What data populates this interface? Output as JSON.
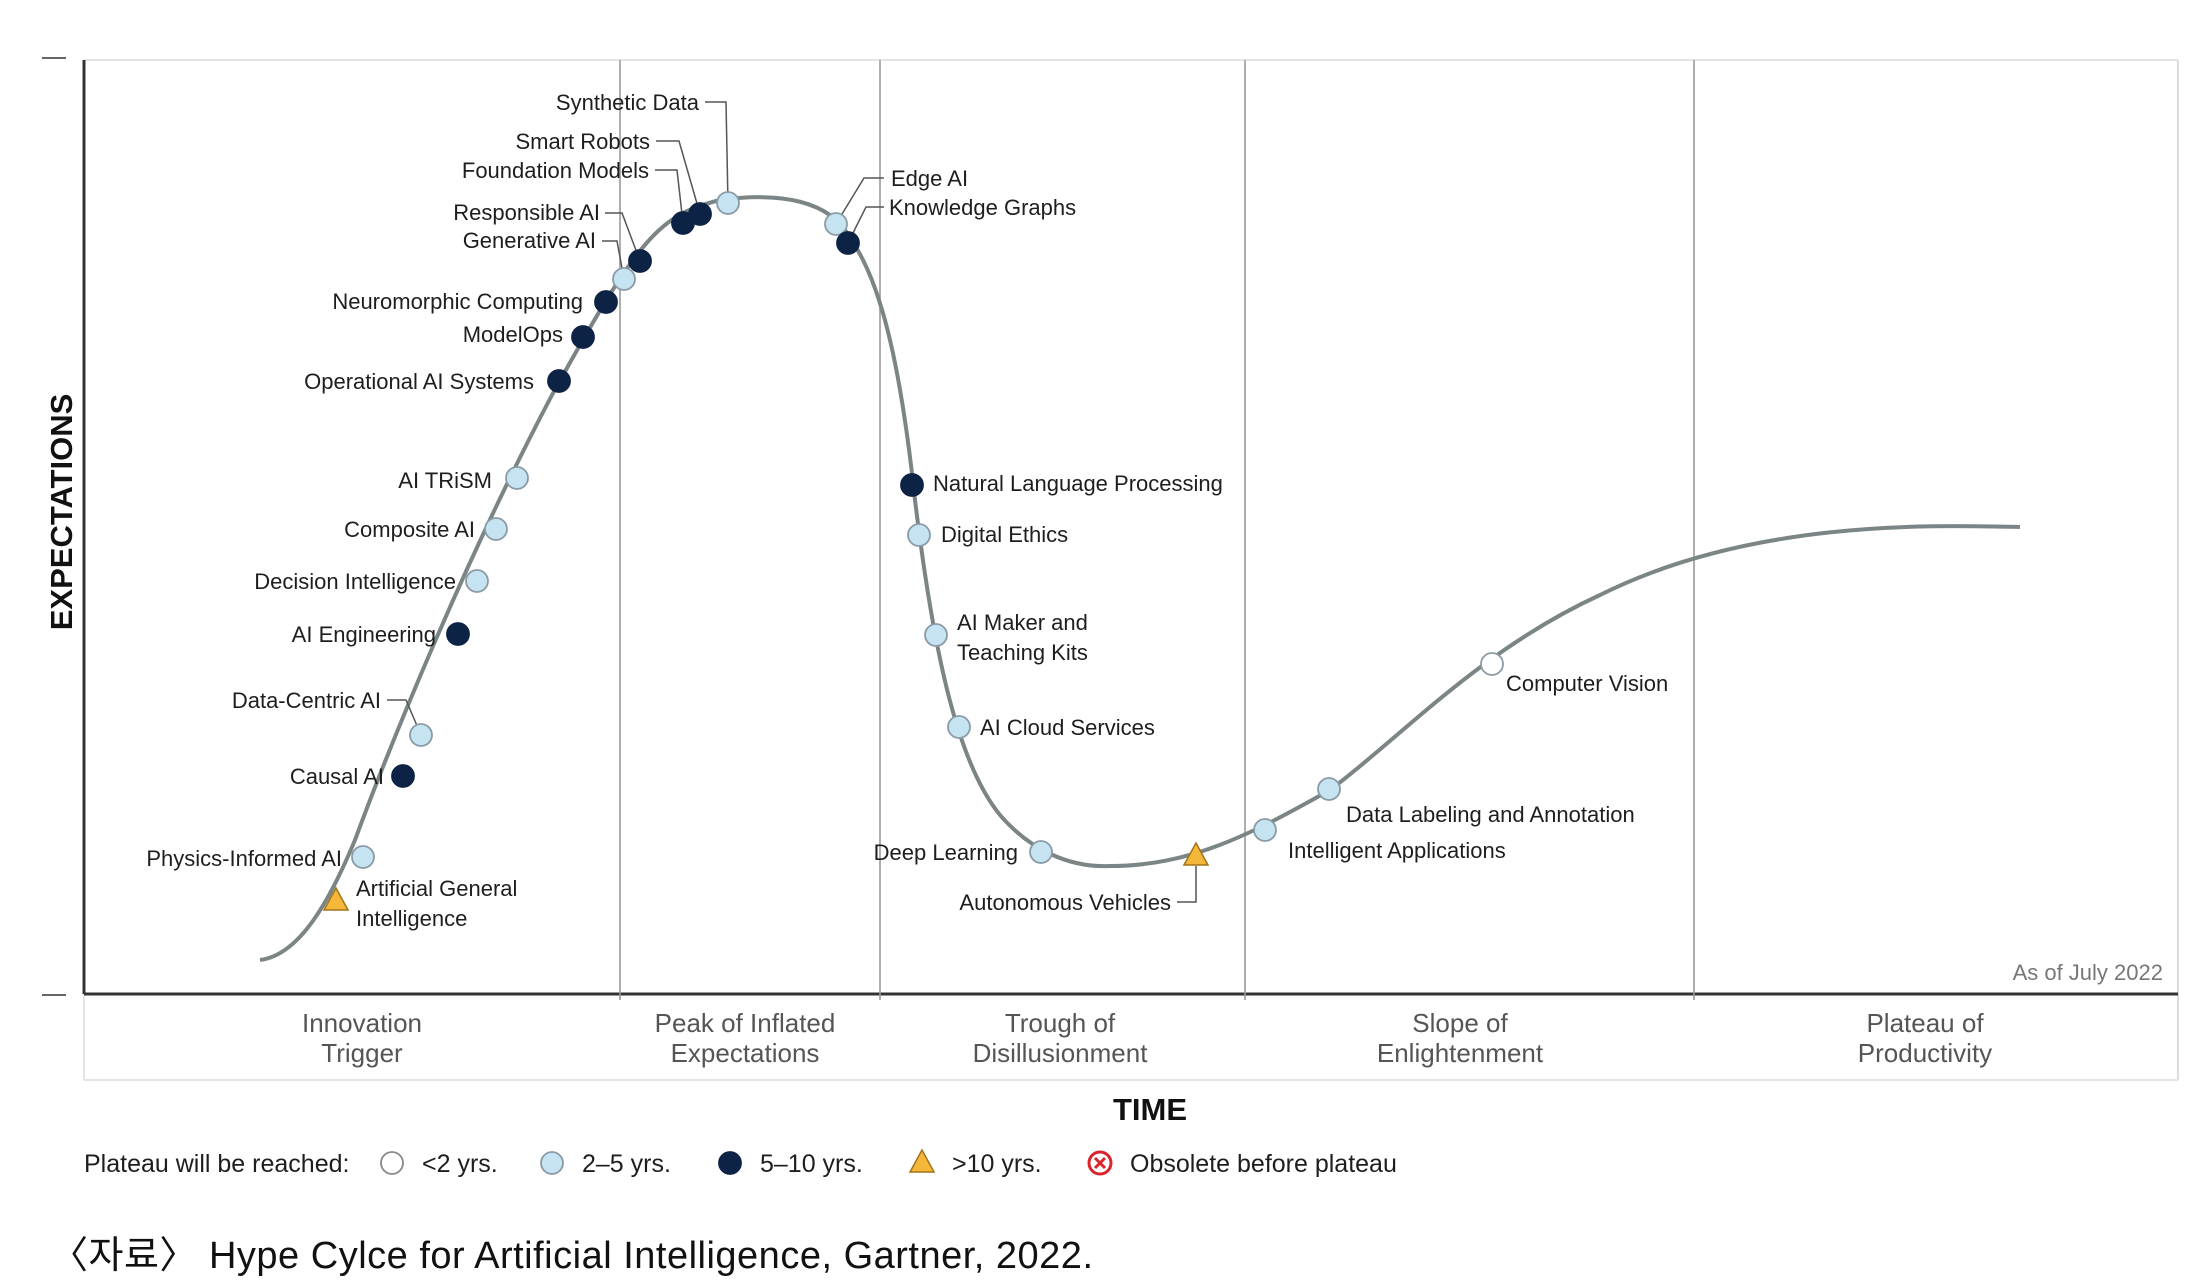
{
  "chart_data": {
    "type": "line",
    "title": "",
    "xlabel": "TIME",
    "ylabel": "EXPECTATIONS",
    "phases": [
      {
        "lines": [
          "Innovation",
          "Trigger"
        ]
      },
      {
        "lines": [
          "Peak of Inflated",
          "Expectations"
        ]
      },
      {
        "lines": [
          "Trough of",
          "Disillusionment"
        ]
      },
      {
        "lines": [
          "Slope of",
          "Enlightenment"
        ]
      },
      {
        "lines": [
          "Plateau of",
          "Productivity"
        ]
      }
    ],
    "as_of": "As of July 2022",
    "legend": {
      "title": "Plateau will be reached:",
      "entries": [
        {
          "key": "lt2",
          "label": "<2 yrs.",
          "color": "#ffffff"
        },
        {
          "key": "2to5",
          "label": "2–5 yrs.",
          "color": "#c5e3f1"
        },
        {
          "key": "5to10",
          "label": "5–10 yrs.",
          "color": "#0d2346"
        },
        {
          "key": "gt10",
          "label": ">10 yrs.",
          "color": "#f4b73a"
        },
        {
          "key": "obsolete",
          "label": "Obsolete before plateau",
          "color": "#d9262c"
        }
      ]
    },
    "technologies": [
      {
        "name": "Artificial General Intelligence",
        "lines": [
          "Artificial General",
          "Intelligence"
        ],
        "cat": "gt10"
      },
      {
        "name": "Physics-Informed AI",
        "cat": "2to5"
      },
      {
        "name": "Causal AI",
        "cat": "5to10"
      },
      {
        "name": "Data-Centric AI",
        "cat": "2to5"
      },
      {
        "name": "AI Engineering",
        "cat": "5to10"
      },
      {
        "name": "Decision Intelligence",
        "cat": "2to5"
      },
      {
        "name": "Composite AI",
        "cat": "2to5"
      },
      {
        "name": "AI TRiSM",
        "cat": "2to5"
      },
      {
        "name": "Operational AI Systems",
        "cat": "5to10"
      },
      {
        "name": "ModelOps",
        "cat": "5to10"
      },
      {
        "name": "Neuromorphic Computing",
        "cat": "5to10"
      },
      {
        "name": "Generative AI",
        "cat": "2to5"
      },
      {
        "name": "Responsible AI",
        "cat": "5to10"
      },
      {
        "name": "Foundation Models",
        "cat": "5to10"
      },
      {
        "name": "Smart Robots",
        "cat": "5to10"
      },
      {
        "name": "Synthetic Data",
        "cat": "2to5"
      },
      {
        "name": "Edge AI",
        "cat": "2to5"
      },
      {
        "name": "Knowledge Graphs",
        "cat": "5to10"
      },
      {
        "name": "Natural Language Processing",
        "cat": "5to10"
      },
      {
        "name": "Digital Ethics",
        "cat": "2to5"
      },
      {
        "name": "AI Maker and Teaching Kits",
        "lines": [
          "AI Maker and",
          "Teaching Kits"
        ],
        "cat": "2to5"
      },
      {
        "name": "AI Cloud Services",
        "cat": "2to5"
      },
      {
        "name": "Deep Learning",
        "cat": "2to5"
      },
      {
        "name": "Autonomous Vehicles",
        "cat": "gt10"
      },
      {
        "name": "Intelligent Applications",
        "cat": "2to5"
      },
      {
        "name": "Data Labeling and Annotation",
        "cat": "2to5"
      },
      {
        "name": "Computer Vision",
        "cat": "lt2"
      }
    ]
  },
  "caption": "〈자료〉 Hype Cylce for Artificial Intelligence, Gartner, 2022."
}
